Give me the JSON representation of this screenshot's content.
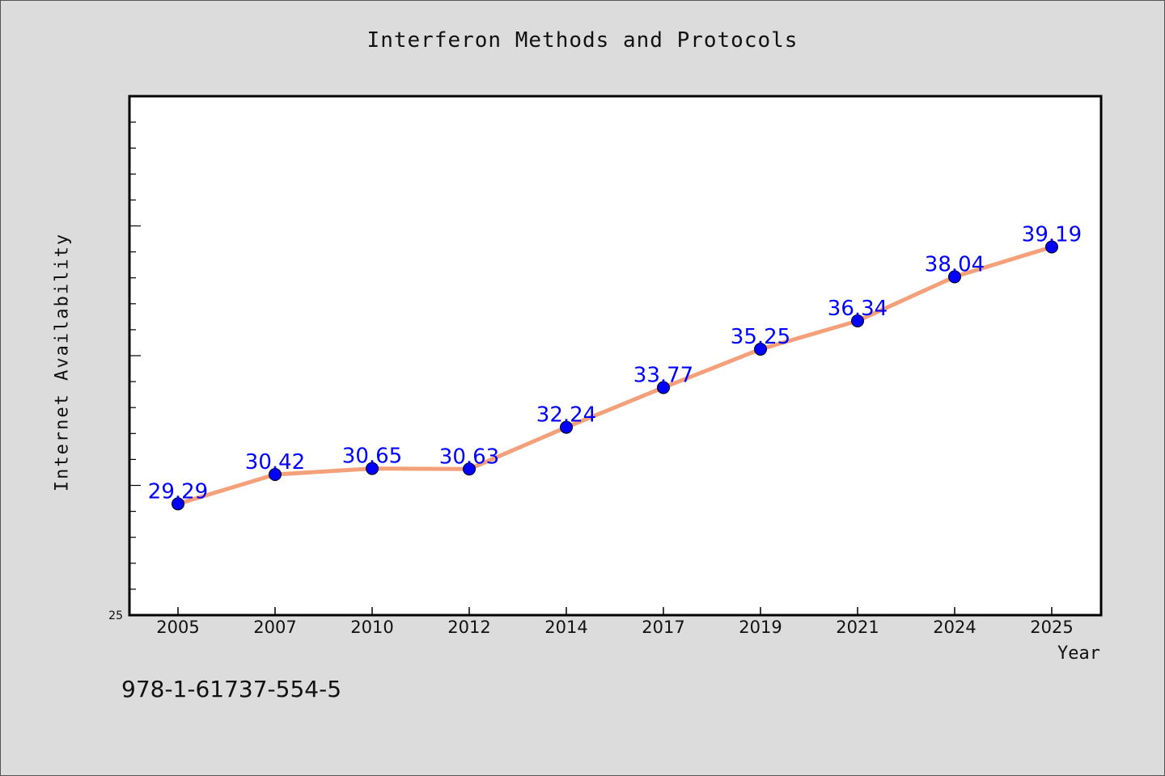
{
  "chart_data": {
    "type": "line",
    "title": "Interferon Methods and Protocols",
    "xlabel": "Year",
    "ylabel": "Internet Availability",
    "categories": [
      "2005",
      "2007",
      "2010",
      "2012",
      "2014",
      "2017",
      "2019",
      "2021",
      "2024",
      "2025"
    ],
    "series": [
      {
        "values": [
          29.29,
          30.42,
          30.65,
          30.63,
          32.24,
          33.77,
          35.25,
          36.34,
          38.04,
          39.19
        ]
      }
    ],
    "ylim": [
      25,
      45
    ],
    "ytick_labels": [
      "25"
    ],
    "line_color": "#f4a07a",
    "marker_color": "#0000ff",
    "label_color": "#0000ff",
    "grid": false,
    "legend": "none"
  },
  "footer": {
    "isbn": "978-1-61737-554-5"
  }
}
